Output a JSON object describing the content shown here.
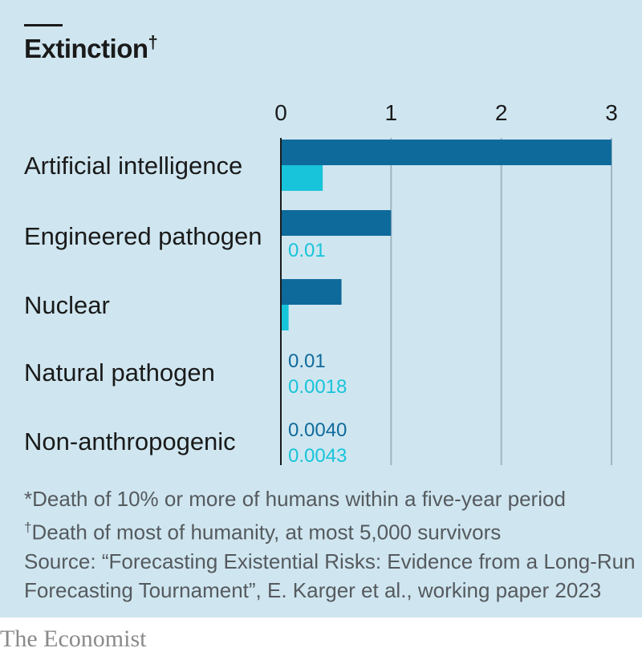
{
  "title": {
    "text": "Extinction",
    "mark": "†"
  },
  "chart_data": {
    "type": "bar",
    "orientation": "horizontal",
    "categories": [
      "Artificial intelligence",
      "Engineered pathogen",
      "Nuclear",
      "Natural pathogen",
      "Non-anthropogenic"
    ],
    "series": [
      {
        "values": [
          3,
          1,
          0.55,
          0.01,
          0.004
        ],
        "color": "#0f6a9c"
      },
      {
        "values": [
          0.38,
          0.01,
          0.07,
          0.0018,
          0.0043
        ],
        "color": "#18c4d9"
      }
    ],
    "data_labels": [
      [
        null,
        null,
        null,
        "0.01",
        "0.0040"
      ],
      [
        null,
        "0.01",
        null,
        "0.0018",
        "0.0043"
      ]
    ],
    "xlim": [
      0,
      3
    ],
    "xticks": [
      "0",
      "1",
      "2",
      "3"
    ],
    "grid": true
  },
  "notes": [
    {
      "mark": "*",
      "text": "Death of 10% or more of humans within a five-year period"
    },
    {
      "mark": "†",
      "text": "Death of most of humanity, at most 5,000 survivors"
    }
  ],
  "source": [
    "Source: “Forecasting Existential Risks: Evidence from a Long-Run",
    "Forecasting Tournament”, E. Karger et al., working paper 2023"
  ],
  "brand": "The Economist"
}
